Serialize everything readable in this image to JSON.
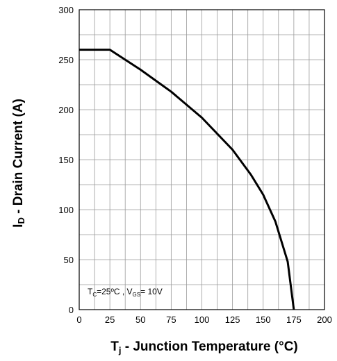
{
  "chart_data": {
    "type": "line",
    "title": "",
    "xlabel": {
      "main": "T",
      "sub": "j",
      "rest": " - Junction Temperature (°C)"
    },
    "ylabel": {
      "main": "I",
      "sub": "D",
      "rest": " - Drain Current (A)"
    },
    "xlim": [
      0,
      200
    ],
    "ylim": [
      0,
      300
    ],
    "x_ticks": [
      0,
      25,
      50,
      75,
      100,
      125,
      150,
      175,
      200
    ],
    "y_ticks": [
      0,
      50,
      100,
      150,
      200,
      250,
      300
    ],
    "grid": true,
    "grid_x_step": 12.5,
    "grid_y_step": 25,
    "annotation": {
      "T": "T",
      "T_sub": "C",
      "T_val": "=25ºC , ",
      "V": "V",
      "V_sub": "GS",
      "V_val": "= 10V"
    },
    "series": [
      {
        "line_color": "#000000",
        "points": [
          [
            0,
            260
          ],
          [
            25,
            260
          ],
          [
            30,
            256
          ],
          [
            50,
            240
          ],
          [
            75,
            218
          ],
          [
            100,
            192
          ],
          [
            125,
            160
          ],
          [
            140,
            135
          ],
          [
            150,
            115
          ],
          [
            160,
            88
          ],
          [
            170,
            48
          ],
          [
            175,
            0
          ]
        ]
      }
    ]
  }
}
